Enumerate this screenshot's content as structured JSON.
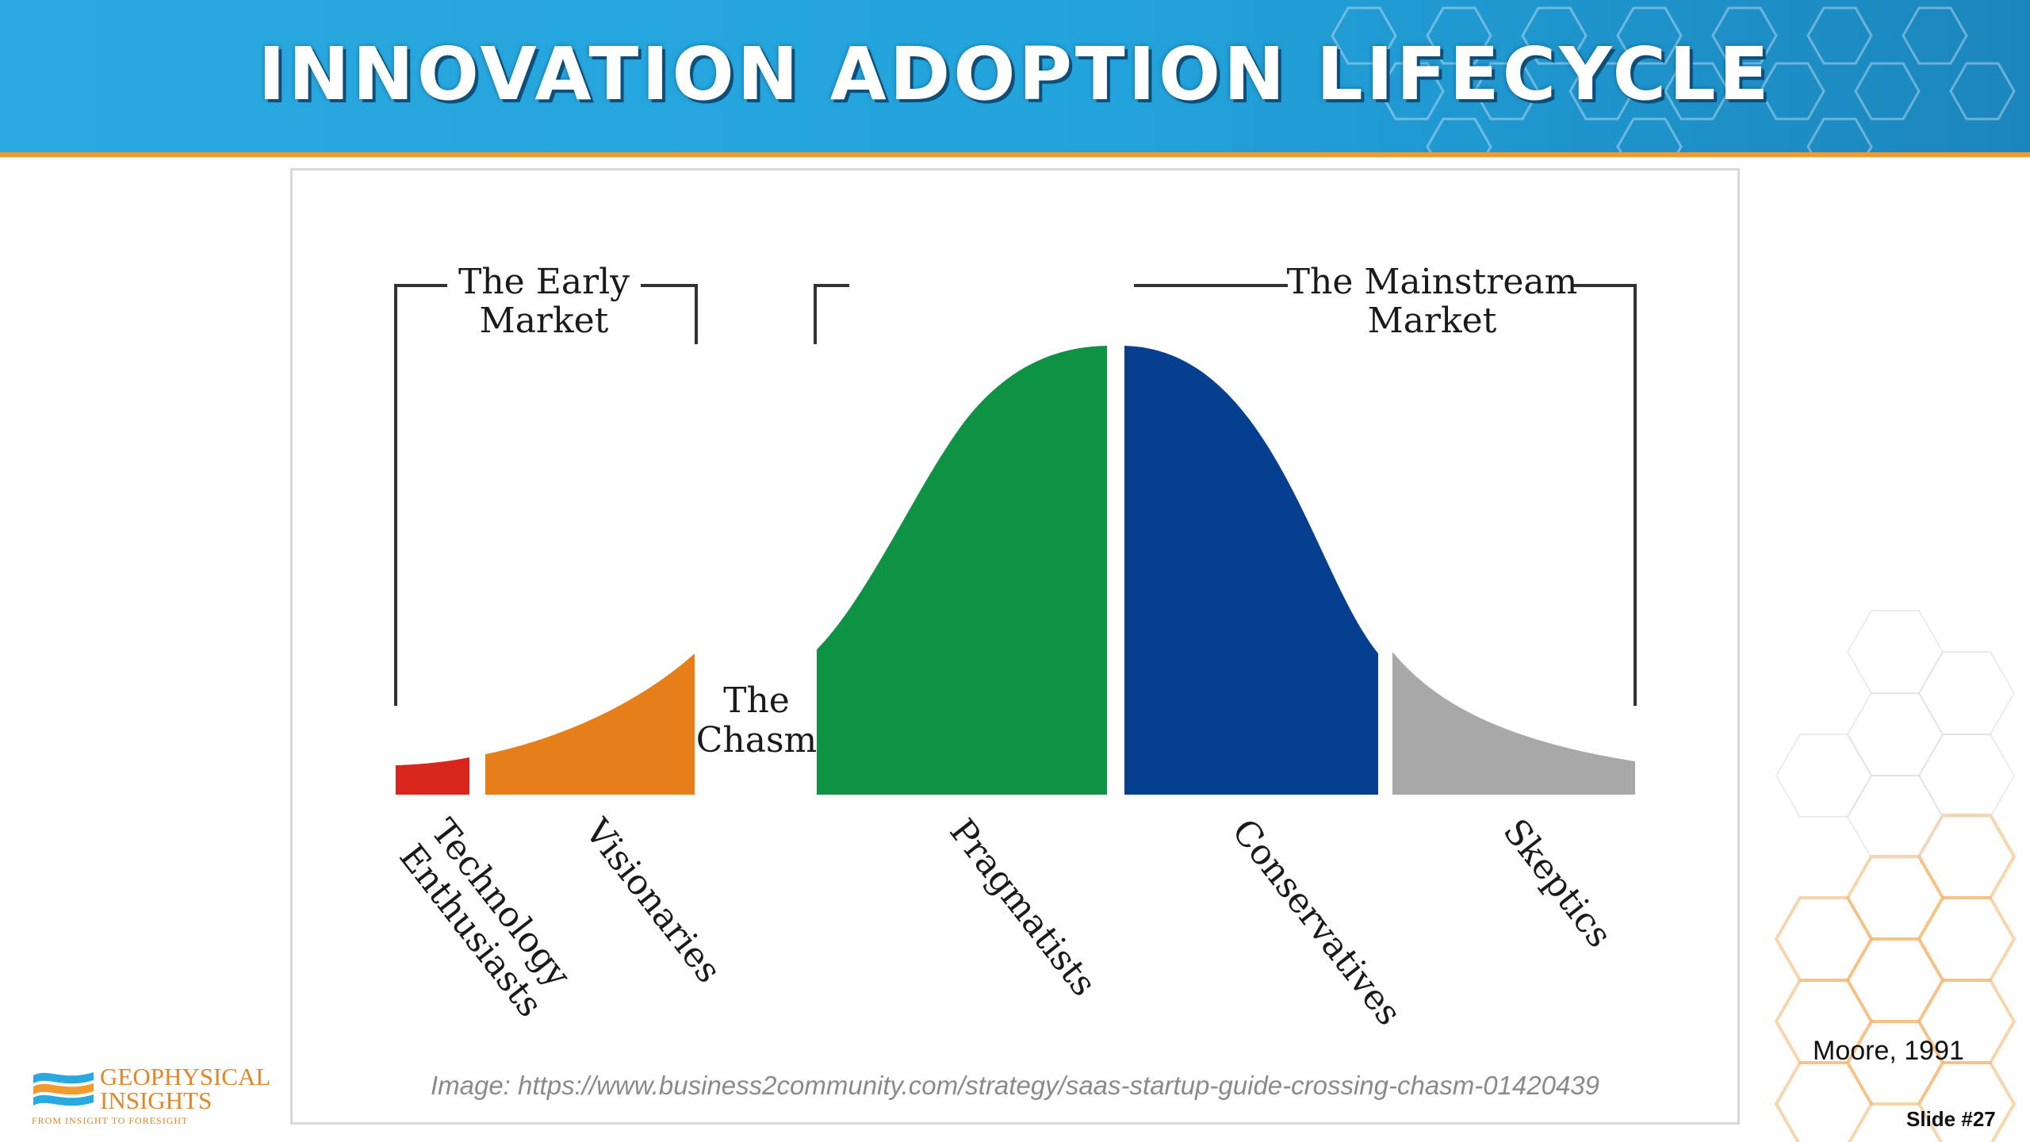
{
  "slide": {
    "title": "INNOVATION ADOPTION LIFECYCLE",
    "citation": "Moore, 1991",
    "slide_number": "Slide #27",
    "image_credit": "Image: https://www.business2community.com/strategy/saas-startup-guide-crossing-chasm-01420439"
  },
  "logo": {
    "line1": "GEOPHYSICAL",
    "line2": "INSIGHTS",
    "tagline": "FROM INSIGHT TO FORESIGHT"
  },
  "diagram": {
    "early_market_label": [
      "The Early",
      "Market"
    ],
    "mainstream_market_label": [
      "The Mainstream",
      "Market"
    ],
    "chasm_label": [
      "The",
      "Chasm"
    ],
    "segments": [
      {
        "label": [
          "Technology",
          "Enthusiasts"
        ],
        "color": "#d9261c"
      },
      {
        "label": [
          "Visionaries"
        ],
        "color": "#e67e1a"
      },
      {
        "label": [
          "Pragmatists"
        ],
        "color": "#0e9345"
      },
      {
        "label": [
          "Conservatives"
        ],
        "color": "#063f8f"
      },
      {
        "label": [
          "Skeptics"
        ],
        "color": "#a8a8a8"
      }
    ]
  },
  "colors": {
    "header_blue": "#23a3dc",
    "header_rule_orange": "#f29a2e",
    "title_shadow": "#0b4f7a"
  }
}
